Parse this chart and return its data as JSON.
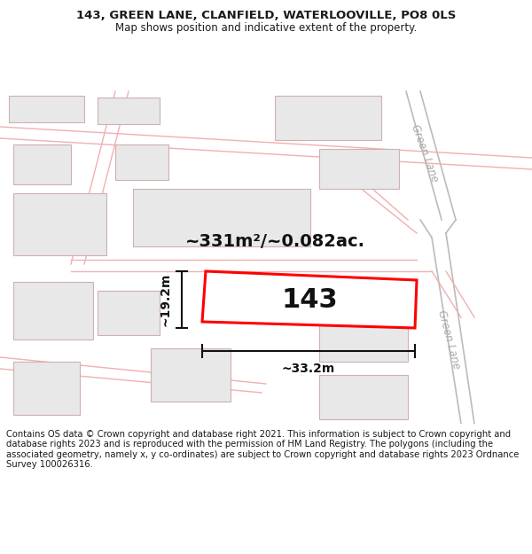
{
  "title_line1": "143, GREEN LANE, CLANFIELD, WATERLOOVILLE, PO8 0LS",
  "title_line2": "Map shows position and indicative extent of the property.",
  "footer_text": "Contains OS data © Crown copyright and database right 2021. This information is subject to Crown copyright and database rights 2023 and is reproduced with the permission of HM Land Registry. The polygons (including the associated geometry, namely x, y co-ordinates) are subject to Crown copyright and database rights 2023 Ordnance Survey 100026316.",
  "background_color": "#ffffff",
  "map_bg": "#f9f6f6",
  "building_fill": "#e8e8e8",
  "building_edge": "#d0b0b0",
  "road_line": "#f0b0b0",
  "road_gray": "#bbbbbb",
  "highlight_color": "#ff0000",
  "label_143": "143",
  "area_label": "~331m²/~0.082ac.",
  "width_label": "~33.2m",
  "height_label": "~19.2m",
  "road_name": "Green Lane",
  "title_fontsize": 9.5,
  "footer_fontsize": 7.2
}
